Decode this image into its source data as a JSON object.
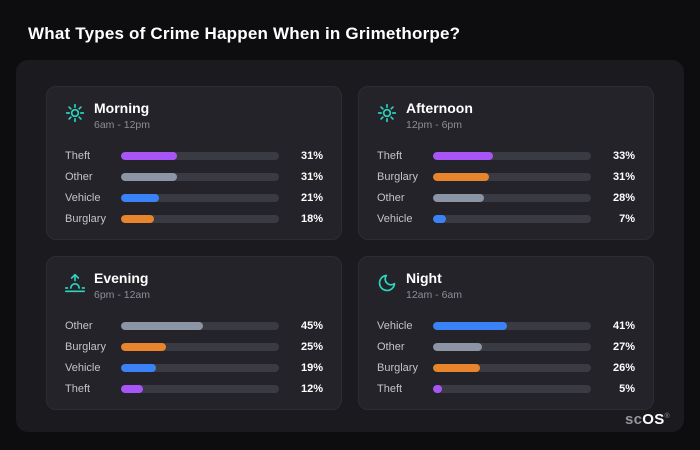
{
  "page_title": "What Types of Crime Happen When in Grimethorpe?",
  "brand": {
    "prefix": "sc",
    "suffix": "OS",
    "reg": "®"
  },
  "colors": {
    "accent_teal": "#2dd4bf",
    "theft": "#a855f7",
    "other": "#8b95a5",
    "vehicle": "#3b82f6",
    "burglary": "#e8842c",
    "track": "#3a3a42"
  },
  "chart_data": {
    "type": "bar",
    "title": "What Types of Crime Happen When in Grimethorpe?",
    "unit": "%",
    "legend_position": "none",
    "groups": [
      {
        "name": "Morning",
        "time": "6am - 12pm",
        "icon": "sun-icon",
        "bars": [
          {
            "label": "Theft",
            "value": 31,
            "pct": "31%",
            "color": "#a855f7"
          },
          {
            "label": "Other",
            "value": 31,
            "pct": "31%",
            "color": "#8b95a5"
          },
          {
            "label": "Vehicle",
            "value": 21,
            "pct": "21%",
            "color": "#3b82f6"
          },
          {
            "label": "Burglary",
            "value": 18,
            "pct": "18%",
            "color": "#e8842c"
          }
        ]
      },
      {
        "name": "Afternoon",
        "time": "12pm - 6pm",
        "icon": "sun-icon",
        "bars": [
          {
            "label": "Theft",
            "value": 33,
            "pct": "33%",
            "color": "#a855f7"
          },
          {
            "label": "Burglary",
            "value": 31,
            "pct": "31%",
            "color": "#e8842c"
          },
          {
            "label": "Other",
            "value": 28,
            "pct": "28%",
            "color": "#8b95a5"
          },
          {
            "label": "Vehicle",
            "value": 7,
            "pct": "7%",
            "color": "#3b82f6"
          }
        ]
      },
      {
        "name": "Evening",
        "time": "6pm - 12am",
        "icon": "sunset-icon",
        "bars": [
          {
            "label": "Other",
            "value": 45,
            "pct": "45%",
            "color": "#8b95a5"
          },
          {
            "label": "Burglary",
            "value": 25,
            "pct": "25%",
            "color": "#e8842c"
          },
          {
            "label": "Vehicle",
            "value": 19,
            "pct": "19%",
            "color": "#3b82f6"
          },
          {
            "label": "Theft",
            "value": 12,
            "pct": "12%",
            "color": "#a855f7"
          }
        ]
      },
      {
        "name": "Night",
        "time": "12am - 6am",
        "icon": "moon-icon",
        "bars": [
          {
            "label": "Vehicle",
            "value": 41,
            "pct": "41%",
            "color": "#3b82f6"
          },
          {
            "label": "Other",
            "value": 27,
            "pct": "27%",
            "color": "#8b95a5"
          },
          {
            "label": "Burglary",
            "value": 26,
            "pct": "26%",
            "color": "#e8842c"
          },
          {
            "label": "Theft",
            "value": 5,
            "pct": "5%",
            "color": "#a855f7"
          }
        ]
      }
    ]
  }
}
